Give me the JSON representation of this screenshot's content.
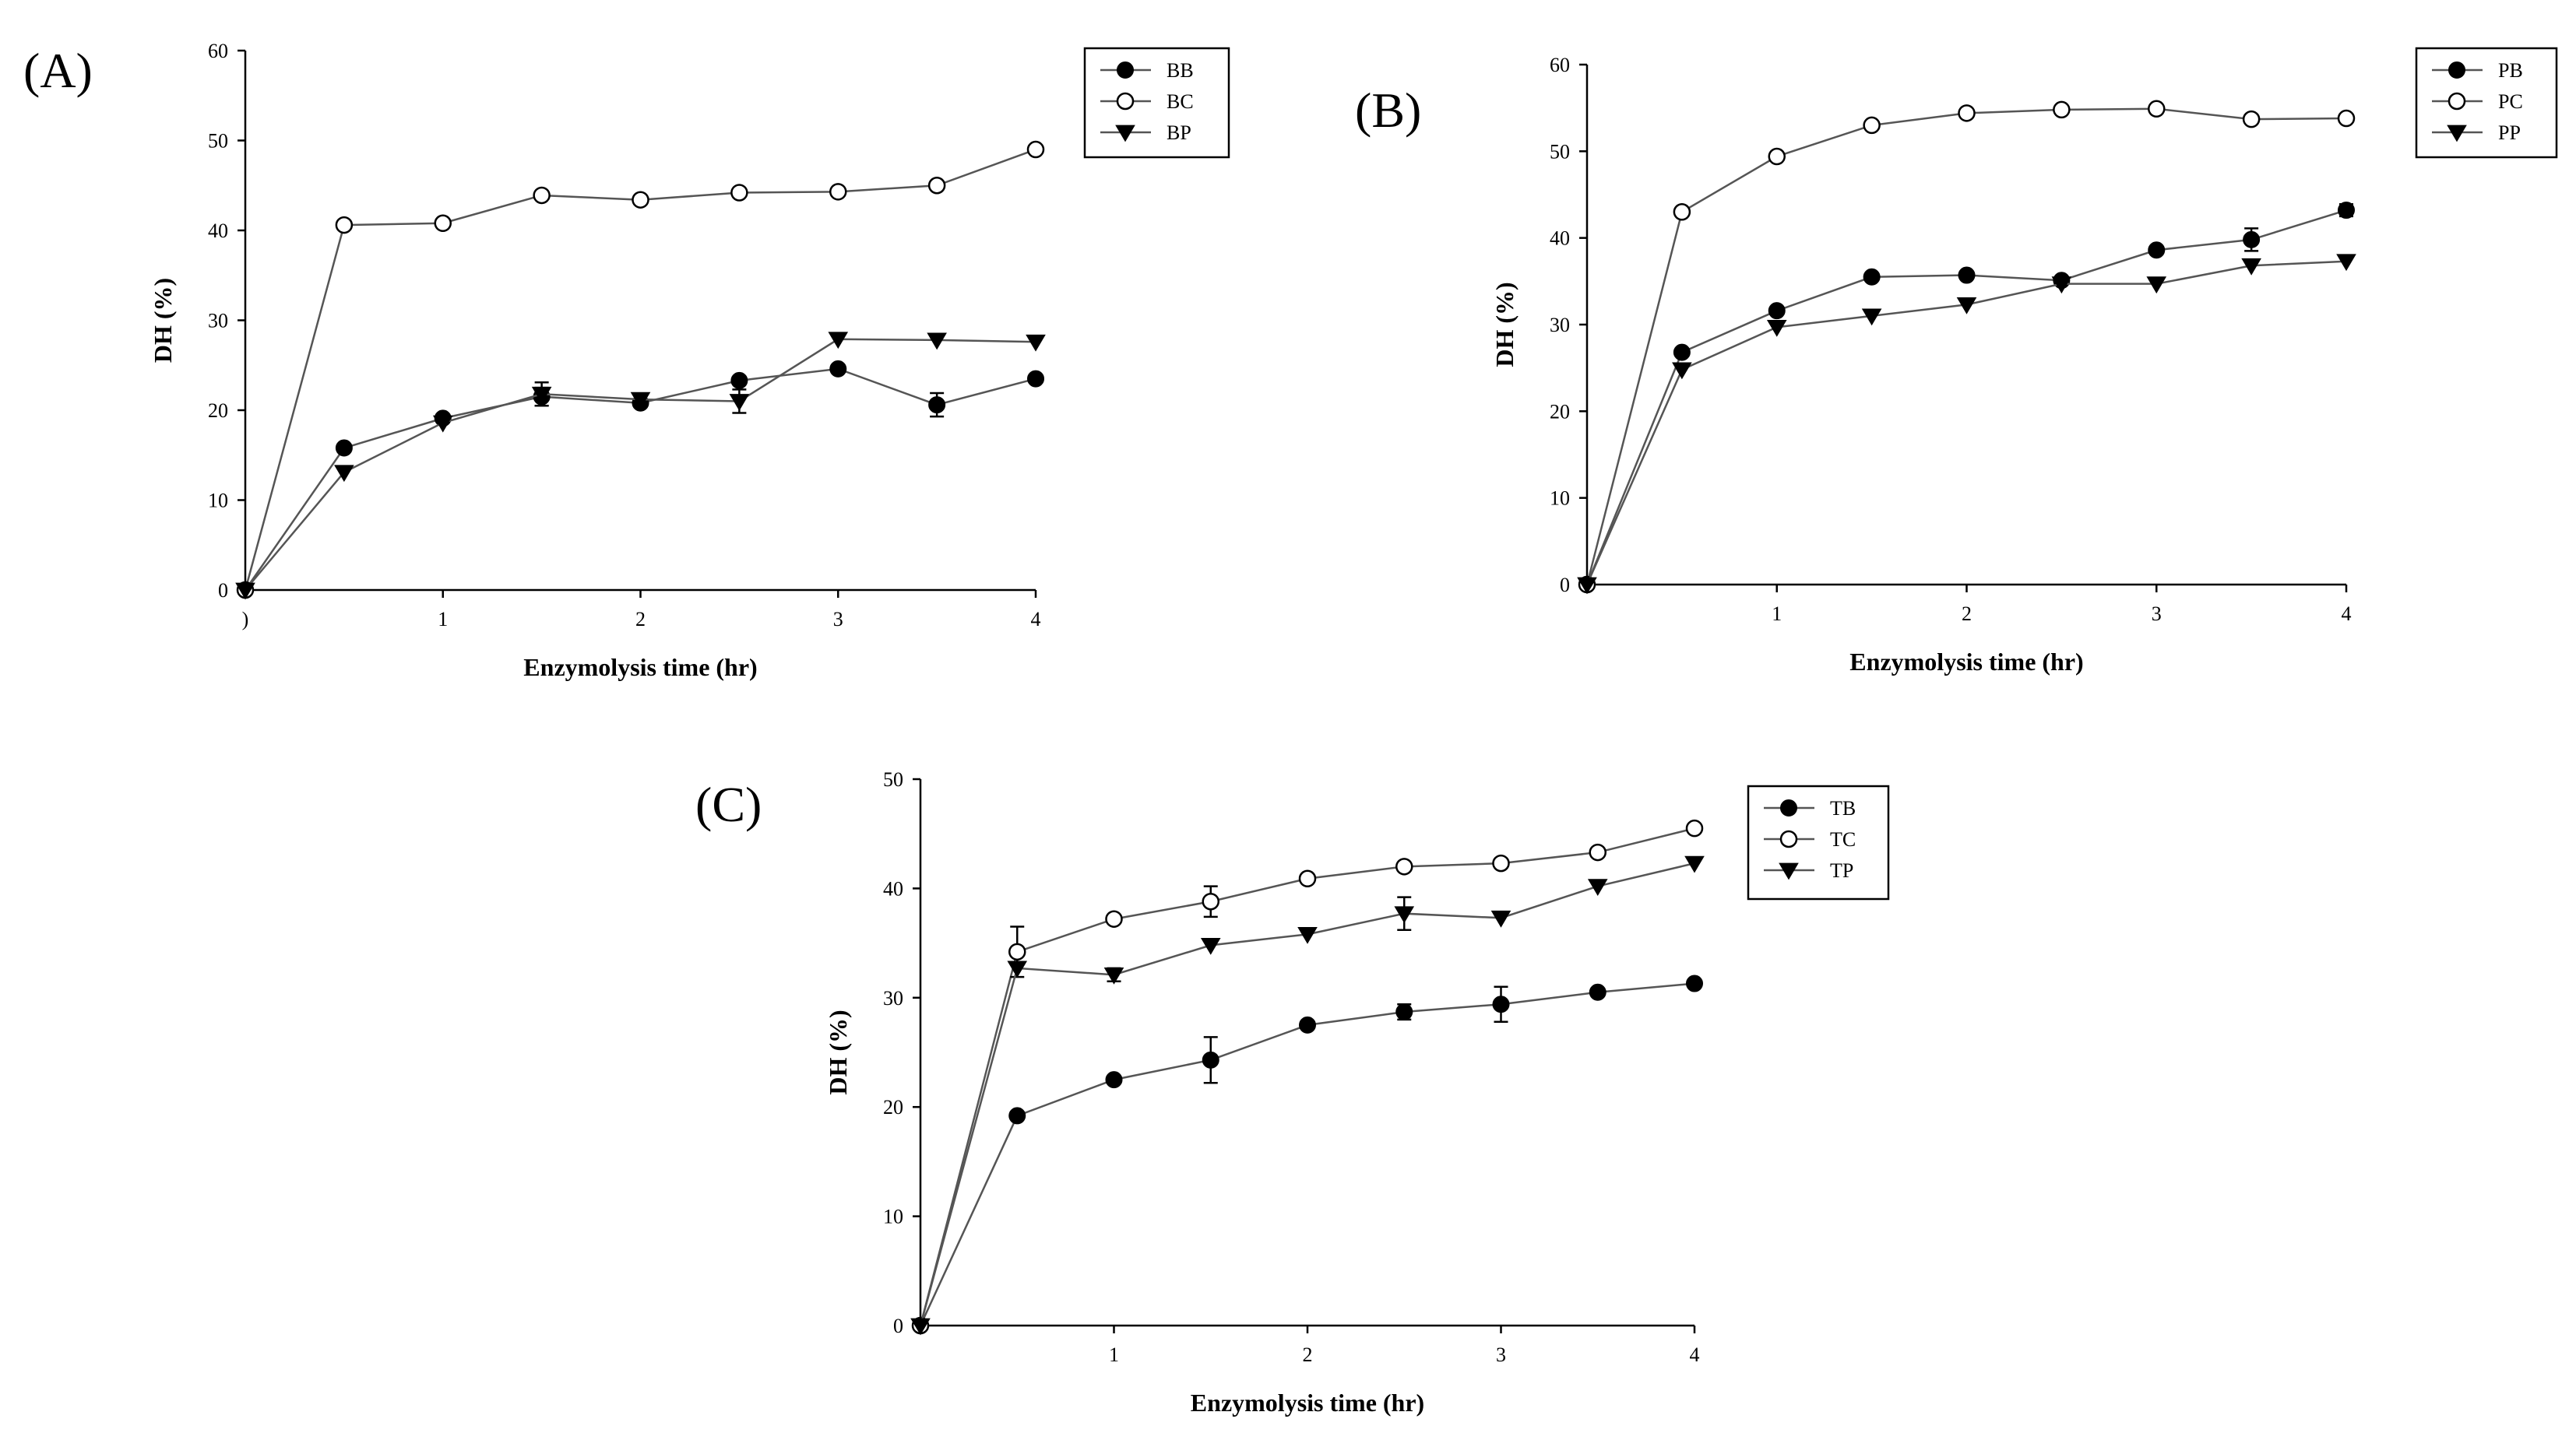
{
  "chart_data": [
    {
      "type": "line",
      "panel": "(A)",
      "xlabel": "Enzymolysis time (hr)",
      "ylabel": "DH (%)",
      "xlim": [
        0,
        4
      ],
      "ylim": [
        0,
        60
      ],
      "x_ticks": [
        0,
        1,
        2,
        3,
        4
      ],
      "x_tick_labels": [
        ")",
        "1",
        "2",
        "3",
        "4"
      ],
      "y_ticks": [
        0,
        10,
        20,
        30,
        40,
        50,
        60
      ],
      "legend_position": "top-right",
      "x": [
        0,
        0.5,
        1,
        1.5,
        2,
        2.5,
        3,
        3.5,
        4
      ],
      "series": [
        {
          "name": "BB",
          "marker": "filled-circle",
          "values": [
            0,
            15.8,
            19.1,
            21.5,
            20.8,
            23.3,
            24.6,
            20.6,
            23.5
          ],
          "errors": [
            0,
            0.5,
            0.5,
            1.0,
            0.5,
            0.5,
            0.5,
            1.3,
            0.5
          ]
        },
        {
          "name": "BC",
          "marker": "open-circle",
          "values": [
            0,
            40.6,
            40.8,
            43.9,
            43.4,
            44.2,
            44.3,
            45.0,
            49.0
          ],
          "errors": [
            0,
            0.5,
            0.5,
            0.5,
            0.5,
            0.5,
            0.5,
            0.5,
            0.5
          ]
        },
        {
          "name": "BP",
          "marker": "filled-triangle-down",
          "values": [
            0,
            13.1,
            18.6,
            21.8,
            21.2,
            21.0,
            27.9,
            27.8,
            27.6
          ],
          "errors": [
            0,
            0.5,
            0.5,
            1.3,
            0.5,
            1.3,
            0.5,
            0.5,
            0.5
          ]
        }
      ]
    },
    {
      "type": "line",
      "panel": "(B)",
      "xlabel": "Enzymolysis time (hr)",
      "ylabel": "DH (%)",
      "xlim": [
        0,
        4
      ],
      "ylim": [
        0,
        60
      ],
      "x_ticks": [
        0,
        1,
        2,
        3,
        4
      ],
      "x_tick_labels": [
        "",
        "1",
        "2",
        "3",
        "4"
      ],
      "y_ticks": [
        0,
        10,
        20,
        30,
        40,
        50,
        60
      ],
      "legend_position": "top-right",
      "x": [
        0,
        0.5,
        1,
        1.5,
        2,
        2.5,
        3,
        3.5,
        4
      ],
      "series": [
        {
          "name": "PB",
          "marker": "filled-circle",
          "values": [
            0,
            26.8,
            31.6,
            35.5,
            35.7,
            35.1,
            38.6,
            39.8,
            43.2
          ],
          "errors": [
            0,
            0.5,
            0.5,
            0.5,
            0.5,
            0.5,
            0.5,
            1.3,
            0.7
          ]
        },
        {
          "name": "PC",
          "marker": "open-circle",
          "values": [
            0,
            43.0,
            49.4,
            53.0,
            54.4,
            54.8,
            54.9,
            53.7,
            53.8
          ],
          "errors": [
            0,
            0.5,
            0.5,
            0.5,
            0.5,
            0.5,
            0.5,
            0.5,
            0.5
          ]
        },
        {
          "name": "PP",
          "marker": "filled-triangle-down",
          "values": [
            0,
            24.8,
            29.7,
            31.0,
            32.3,
            34.7,
            34.7,
            36.8,
            37.3
          ],
          "errors": [
            0,
            0.5,
            0.5,
            0.5,
            0.5,
            0.5,
            0.5,
            0.5,
            0.5
          ]
        }
      ]
    },
    {
      "type": "line",
      "panel": "(C)",
      "xlabel": "Enzymolysis time (hr)",
      "ylabel": "DH (%)",
      "xlim": [
        0,
        4
      ],
      "ylim": [
        0,
        50
      ],
      "x_ticks": [
        0,
        1,
        2,
        3,
        4
      ],
      "x_tick_labels": [
        "",
        "1",
        "2",
        "3",
        "4"
      ],
      "y_ticks": [
        0,
        10,
        20,
        30,
        40,
        50
      ],
      "legend_position": "top-right",
      "x": [
        0,
        0.5,
        1,
        1.5,
        2,
        2.5,
        3,
        3.5,
        4
      ],
      "series": [
        {
          "name": "TB",
          "marker": "filled-circle",
          "values": [
            0,
            19.2,
            22.5,
            24.3,
            27.5,
            28.7,
            29.4,
            30.5,
            31.3
          ],
          "errors": [
            0,
            0.4,
            0.4,
            2.1,
            0.5,
            0.7,
            1.6,
            0.4,
            0.5
          ]
        },
        {
          "name": "TC",
          "marker": "open-circle",
          "values": [
            0,
            34.2,
            37.2,
            38.8,
            40.9,
            42.0,
            42.3,
            43.3,
            45.5
          ],
          "errors": [
            0,
            2.3,
            0.5,
            1.4,
            0.5,
            0.5,
            0.5,
            0.5,
            0.5
          ]
        },
        {
          "name": "TP",
          "marker": "filled-triangle-down",
          "values": [
            0,
            32.7,
            32.1,
            34.8,
            35.8,
            37.7,
            37.3,
            40.2,
            42.3
          ],
          "errors": [
            0,
            0.5,
            0.6,
            0.5,
            0.5,
            1.5,
            0.5,
            0.5,
            0.5
          ]
        }
      ]
    }
  ]
}
